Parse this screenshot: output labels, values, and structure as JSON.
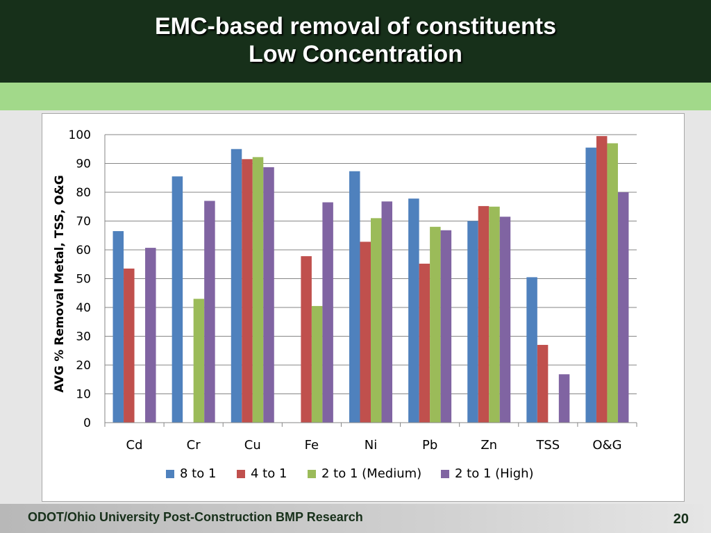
{
  "slide": {
    "title_line1": "EMC-based removal of constituents",
    "title_line2": "Low Concentration",
    "footer_text": "ODOT/Ohio University Post-Construction BMP Research",
    "page_number": "20"
  },
  "chart_data": {
    "type": "bar",
    "ylabel": "AVG % Removal Metal, TSS, O&G",
    "xlabel": "",
    "ylim": [
      0,
      100
    ],
    "yticks": [
      "0",
      "10",
      "20",
      "30",
      "40",
      "50",
      "60",
      "70",
      "80",
      "90",
      "100"
    ],
    "grid": true,
    "legend_position": "bottom",
    "categories": [
      "Cd",
      "Cr",
      "Cu",
      "Fe",
      "Ni",
      "Pb",
      "Zn",
      "TSS",
      "O&G"
    ],
    "series": [
      {
        "name": "8 to 1",
        "color": "#4f81bd",
        "values": [
          66.5,
          85.5,
          95,
          null,
          87.3,
          77.8,
          70,
          50.5,
          95.5
        ]
      },
      {
        "name": "4 to 1",
        "color": "#c0504d",
        "values": [
          53.5,
          null,
          91.5,
          57.8,
          62.8,
          55.2,
          75.2,
          27,
          99.5
        ]
      },
      {
        "name": "2 to 1 (Medium)",
        "color": "#9bbb59",
        "values": [
          null,
          43,
          92.2,
          40.5,
          71,
          68,
          75,
          null,
          97
        ]
      },
      {
        "name": "2 to 1 (High)",
        "color": "#8064a2",
        "values": [
          60.7,
          77,
          88.7,
          76.5,
          76.8,
          66.8,
          71.5,
          16.8,
          80
        ]
      }
    ]
  }
}
